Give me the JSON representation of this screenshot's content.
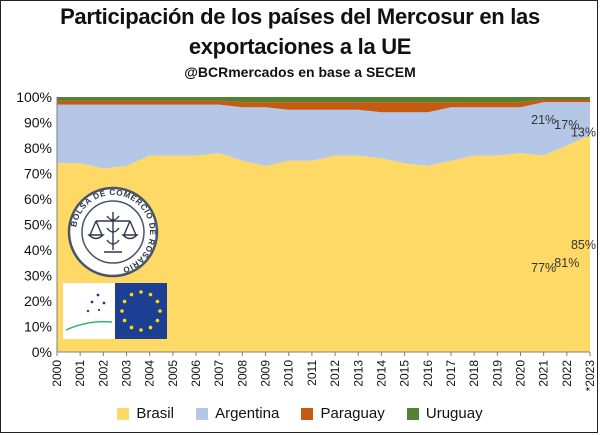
{
  "header": {
    "title_line1": "Participación de los países del Mercosur en las",
    "title_line2": "exportaciones a la UE",
    "subtitle": "@BCRmercados en base a SECEM"
  },
  "logo": {
    "seal_text": "BOLSA DE COMERCIO DE ROSARIO"
  },
  "chart_data": {
    "type": "area",
    "stacked": true,
    "percent_stacked": true,
    "title": "Participación de los países del Mercosur en las exportaciones a la UE",
    "subtitle": "@BCRmercados en base a SECEM",
    "x": [
      "2000",
      "2001",
      "2002",
      "2003",
      "2004",
      "2005",
      "2006",
      "2007",
      "2008",
      "2009",
      "2010",
      "2011",
      "2012",
      "2013",
      "2014",
      "2015",
      "2016",
      "2017",
      "2018",
      "2019",
      "2020",
      "2021",
      "2022",
      "*2023"
    ],
    "series": [
      {
        "name": "Brasil",
        "color": "#FFD966",
        "values": [
          74,
          74,
          72,
          73,
          77,
          77,
          77,
          78,
          75,
          73,
          75,
          75,
          77,
          77,
          76,
          74,
          73,
          75,
          77,
          77,
          78,
          77,
          81,
          85
        ]
      },
      {
        "name": "Argentina",
        "color": "#B4C7E7",
        "values": [
          23,
          23,
          25,
          24,
          20,
          20,
          20,
          19,
          21,
          23,
          20,
          20,
          18,
          18,
          18,
          20,
          21,
          21,
          19,
          19,
          18,
          21,
          17,
          13
        ]
      },
      {
        "name": "Paraguay",
        "color": "#C55A11",
        "values": [
          1.5,
          1.5,
          1.5,
          1.5,
          1.5,
          1.5,
          1.5,
          1.5,
          2,
          2,
          3,
          3,
          3,
          3,
          4,
          4,
          4,
          2,
          2,
          2,
          2,
          1,
          1,
          1
        ]
      },
      {
        "name": "Uruguay",
        "color": "#548235",
        "values": [
          1.5,
          1.5,
          1.5,
          1.5,
          1.5,
          1.5,
          1.5,
          1.5,
          2,
          2,
          2,
          2,
          2,
          2,
          2,
          2,
          2,
          2,
          2,
          2,
          2,
          1,
          1,
          1
        ]
      }
    ],
    "yticks": [
      "0%",
      "10%",
      "20%",
      "30%",
      "40%",
      "50%",
      "60%",
      "70%",
      "80%",
      "90%",
      "100%"
    ],
    "ylim": [
      0,
      100
    ],
    "grid": false,
    "legend_position": "bottom",
    "annotations": [
      {
        "label": "77%",
        "series": "Brasil",
        "x": "2021",
        "y": 33
      },
      {
        "label": "81%",
        "series": "Brasil",
        "x": "2022",
        "y": 35
      },
      {
        "label": "85%",
        "series": "Brasil",
        "x": "*2023",
        "y": 42
      },
      {
        "label": "21%",
        "series": "Argentina",
        "x": "2021",
        "y": 91
      },
      {
        "label": "17%",
        "series": "Argentina",
        "x": "2022",
        "y": 89
      },
      {
        "label": "13%",
        "series": "Argentina",
        "x": "*2023",
        "y": 86
      }
    ]
  }
}
